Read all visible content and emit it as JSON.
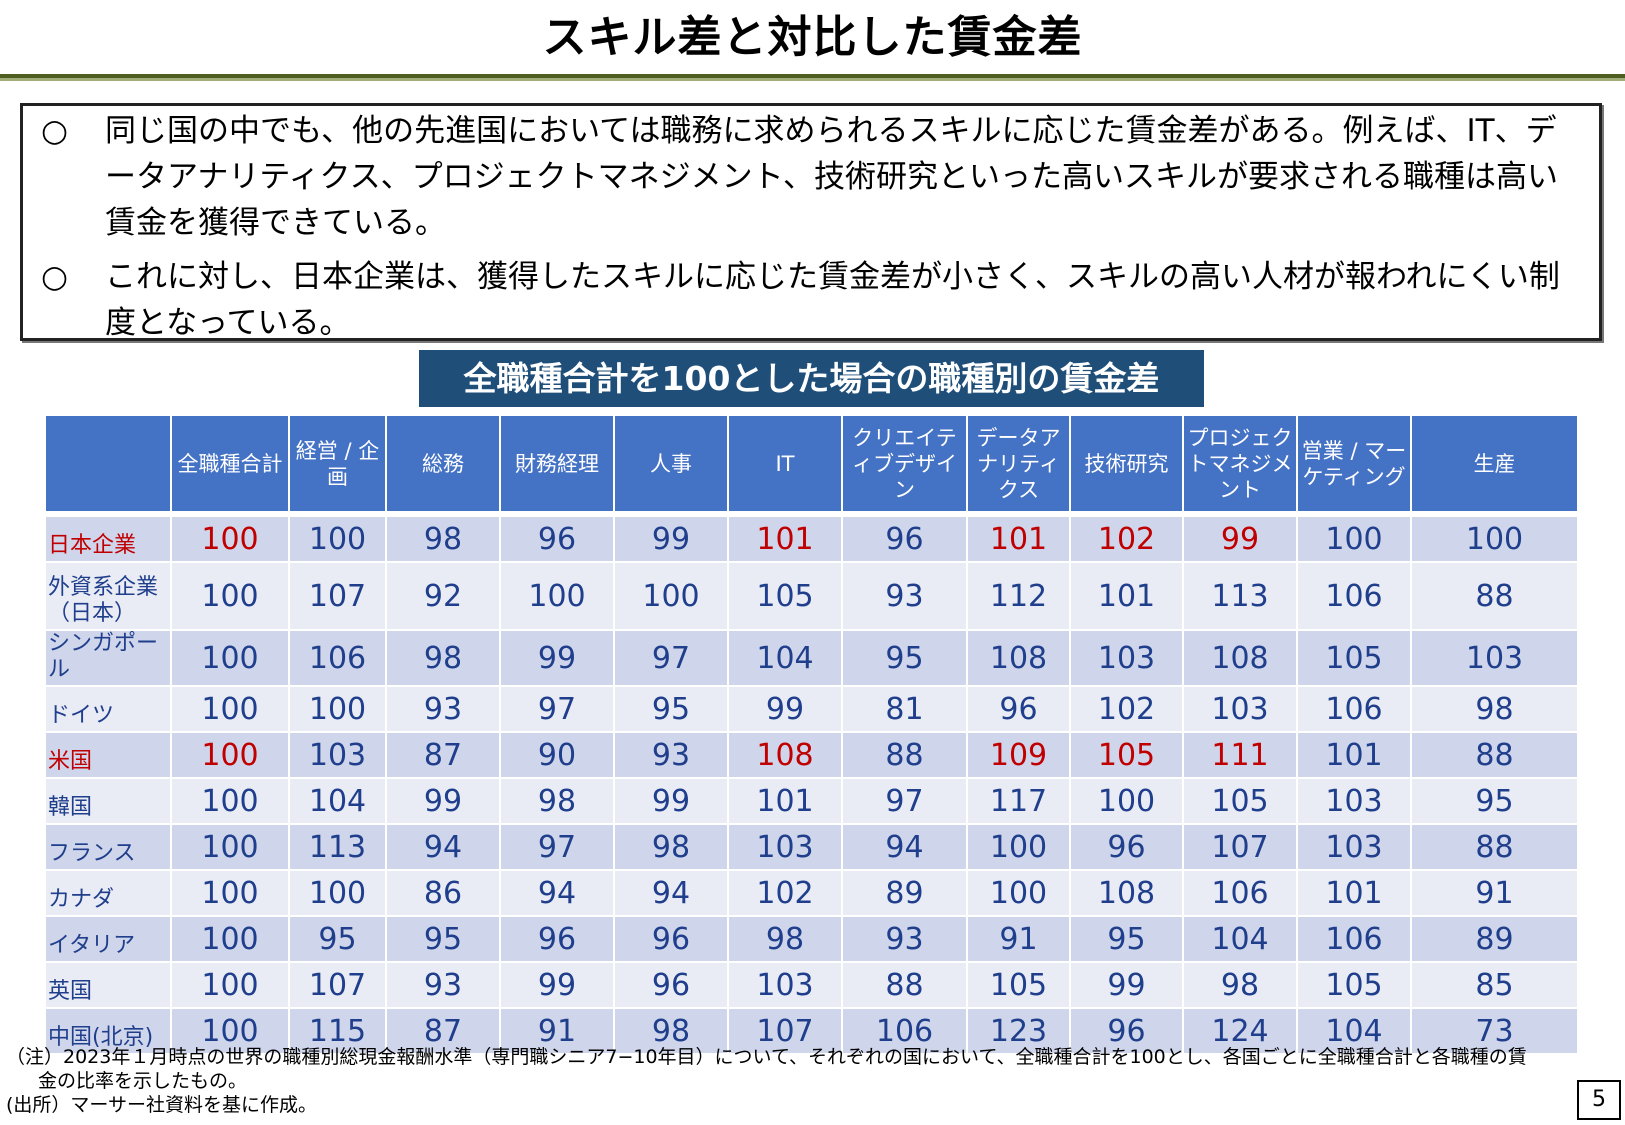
{
  "title": "スキル差と対比した賃金差",
  "summary": {
    "bullets": [
      {
        "mark": "○",
        "text": "同じ国の中でも、他の先進国においては職務に求められるスキルに応じた賃金差がある。例えば、IT、データアナリティクス、プロジェクトマネジメント、技術研究といった高いスキルが要求される職種は高い賃金を獲得できている。"
      },
      {
        "mark": "○",
        "text": "これに対し、日本企業は、獲得したスキルに応じた賃金差が小さく、スキルの高い人材が報われにくい制度となっている。"
      }
    ]
  },
  "table": {
    "heading": "全職種合計を100とした場合の職種別の賃金差",
    "columns": [
      "",
      "全職種合計",
      "経営 / 企画",
      "総務",
      "財務経理",
      "人事",
      "IT",
      "クリエイティブデザイン",
      "データアナリティクス",
      "技術研究",
      "プロジェクトマネジメント",
      "営業 / マーケティング",
      "生産"
    ],
    "rows": [
      {
        "label": "日本企業",
        "label_highlight": true,
        "values": [
          {
            "v": "100",
            "hl": true
          },
          {
            "v": "100"
          },
          {
            "v": "98"
          },
          {
            "v": "96"
          },
          {
            "v": "99"
          },
          {
            "v": "101",
            "hl": true
          },
          {
            "v": "96"
          },
          {
            "v": "101",
            "hl": true
          },
          {
            "v": "102",
            "hl": true
          },
          {
            "v": "99",
            "hl": true
          },
          {
            "v": "100"
          },
          {
            "v": "100"
          }
        ]
      },
      {
        "label": "外資系企業（日本）",
        "values": [
          {
            "v": "100"
          },
          {
            "v": "107"
          },
          {
            "v": "92"
          },
          {
            "v": "100"
          },
          {
            "v": "100"
          },
          {
            "v": "105"
          },
          {
            "v": "93"
          },
          {
            "v": "112"
          },
          {
            "v": "101"
          },
          {
            "v": "113"
          },
          {
            "v": "106"
          },
          {
            "v": "88"
          }
        ]
      },
      {
        "label": "シンガポール",
        "values": [
          {
            "v": "100"
          },
          {
            "v": "106"
          },
          {
            "v": "98"
          },
          {
            "v": "99"
          },
          {
            "v": "97"
          },
          {
            "v": "104"
          },
          {
            "v": "95"
          },
          {
            "v": "108"
          },
          {
            "v": "103"
          },
          {
            "v": "108"
          },
          {
            "v": "105"
          },
          {
            "v": "103"
          }
        ]
      },
      {
        "label": "ドイツ",
        "values": [
          {
            "v": "100"
          },
          {
            "v": "100"
          },
          {
            "v": "93"
          },
          {
            "v": "97"
          },
          {
            "v": "95"
          },
          {
            "v": "99"
          },
          {
            "v": "81"
          },
          {
            "v": "96"
          },
          {
            "v": "102"
          },
          {
            "v": "103"
          },
          {
            "v": "106"
          },
          {
            "v": "98"
          }
        ]
      },
      {
        "label": "米国",
        "label_highlight": true,
        "values": [
          {
            "v": "100",
            "hl": true
          },
          {
            "v": "103"
          },
          {
            "v": "87"
          },
          {
            "v": "90"
          },
          {
            "v": "93"
          },
          {
            "v": "108",
            "hl": true
          },
          {
            "v": "88"
          },
          {
            "v": "109",
            "hl": true
          },
          {
            "v": "105",
            "hl": true
          },
          {
            "v": "111",
            "hl": true
          },
          {
            "v": "101"
          },
          {
            "v": "88"
          }
        ]
      },
      {
        "label": "韓国",
        "values": [
          {
            "v": "100"
          },
          {
            "v": "104"
          },
          {
            "v": "99"
          },
          {
            "v": "98"
          },
          {
            "v": "99"
          },
          {
            "v": "101"
          },
          {
            "v": "97"
          },
          {
            "v": "117"
          },
          {
            "v": "100"
          },
          {
            "v": "105"
          },
          {
            "v": "103"
          },
          {
            "v": "95"
          }
        ]
      },
      {
        "label": "フランス",
        "values": [
          {
            "v": "100"
          },
          {
            "v": "113"
          },
          {
            "v": "94"
          },
          {
            "v": "97"
          },
          {
            "v": "98"
          },
          {
            "v": "103"
          },
          {
            "v": "94"
          },
          {
            "v": "100"
          },
          {
            "v": "96"
          },
          {
            "v": "107"
          },
          {
            "v": "103"
          },
          {
            "v": "88"
          }
        ]
      },
      {
        "label": "カナダ",
        "values": [
          {
            "v": "100"
          },
          {
            "v": "100"
          },
          {
            "v": "86"
          },
          {
            "v": "94"
          },
          {
            "v": "94"
          },
          {
            "v": "102"
          },
          {
            "v": "89"
          },
          {
            "v": "100"
          },
          {
            "v": "108"
          },
          {
            "v": "106"
          },
          {
            "v": "101"
          },
          {
            "v": "91"
          }
        ]
      },
      {
        "label": "イタリア",
        "values": [
          {
            "v": "100"
          },
          {
            "v": "95"
          },
          {
            "v": "95"
          },
          {
            "v": "96"
          },
          {
            "v": "96"
          },
          {
            "v": "98"
          },
          {
            "v": "93"
          },
          {
            "v": "91"
          },
          {
            "v": "95"
          },
          {
            "v": "104"
          },
          {
            "v": "106"
          },
          {
            "v": "89"
          }
        ]
      },
      {
        "label": "英国",
        "values": [
          {
            "v": "100"
          },
          {
            "v": "107"
          },
          {
            "v": "93"
          },
          {
            "v": "99"
          },
          {
            "v": "96"
          },
          {
            "v": "103"
          },
          {
            "v": "88"
          },
          {
            "v": "105"
          },
          {
            "v": "99"
          },
          {
            "v": "98"
          },
          {
            "v": "105"
          },
          {
            "v": "85"
          }
        ]
      },
      {
        "label": "中国(北京)",
        "values": [
          {
            "v": "100"
          },
          {
            "v": "115"
          },
          {
            "v": "87"
          },
          {
            "v": "91"
          },
          {
            "v": "98"
          },
          {
            "v": "107"
          },
          {
            "v": "106"
          },
          {
            "v": "123"
          },
          {
            "v": "96"
          },
          {
            "v": "124"
          },
          {
            "v": "104"
          },
          {
            "v": "73"
          }
        ]
      }
    ]
  },
  "notes": {
    "note_1": "（注）2023年１月時点の世界の職種別総現金報酬水準（専門職シニア7−10年目）について、それぞれの国において、全職種合計を100とし、各国ごとに全職種合計と各職種の賃",
    "note_1_cont": "金の比率を示したもの。",
    "source": "(出所）マーサー社資料を基に作成。"
  },
  "page_number": "5",
  "colors": {
    "header_blue": "#4472c4",
    "heading_navy": "#1f4e79",
    "value_blue": "#1f3e8c",
    "highlight_red": "#c00000",
    "row_band_a": "#cfd5ea",
    "row_band_b": "#e9ebf5",
    "title_rule": "#4f5f22"
  }
}
